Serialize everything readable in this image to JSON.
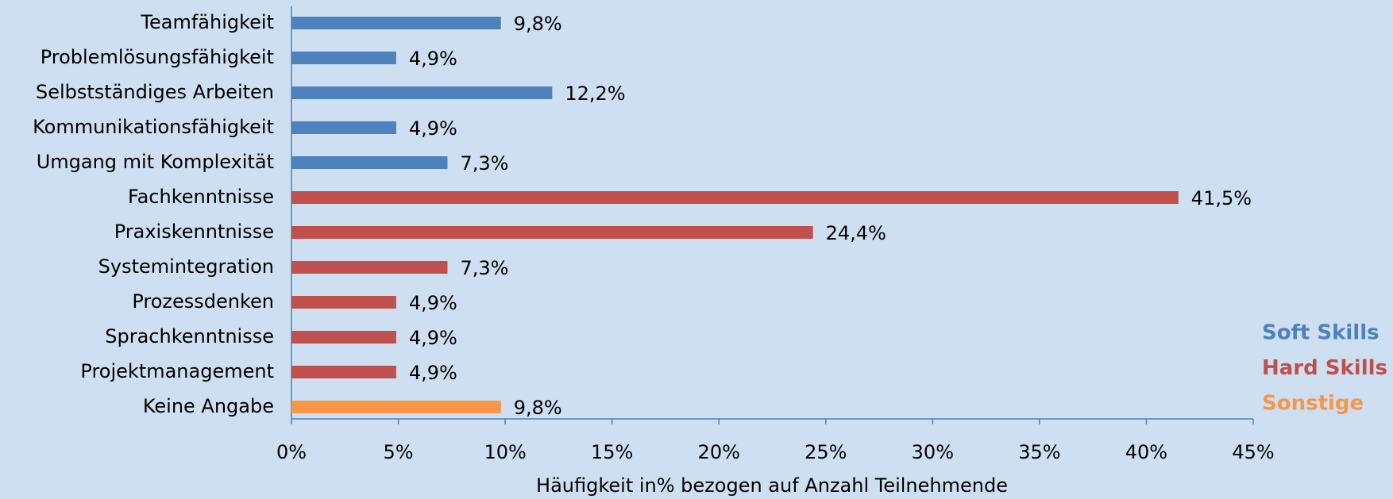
{
  "chart_data": {
    "type": "bar",
    "orientation": "horizontal",
    "x_label": "Häufigkeit in% bezogen auf Anzahl Teilnehmende",
    "categories": [
      "Teamfähigkeit",
      "Problemlösungsfähigkeit",
      "Selbstständiges Arbeiten",
      "Kommunikationsfähigkeit",
      "Umgang mit Komplexität",
      "Fachkenntnisse",
      "Praxiskenntnisse",
      "Systemintegration",
      "Prozessdenken",
      "Sprachkenntnisse",
      "Projektmanagement",
      "Keine Angabe"
    ],
    "series": [
      {
        "name": "Soft Skills",
        "color": "#4f81bd",
        "values": [
          9.8,
          4.9,
          12.2,
          4.9,
          7.3,
          null,
          null,
          null,
          null,
          null,
          null,
          null
        ],
        "value_labels": [
          "9,8%",
          "4,9%",
          "12,2%",
          "4,9%",
          "7,3%",
          null,
          null,
          null,
          null,
          null,
          null,
          null
        ]
      },
      {
        "name": "Hard Skills",
        "color": "#c0504d",
        "values": [
          null,
          null,
          null,
          null,
          null,
          41.5,
          24.4,
          7.3,
          4.9,
          4.9,
          4.9,
          null
        ],
        "value_labels": [
          null,
          null,
          null,
          null,
          null,
          "41,5%",
          "24,4%",
          "7,3%",
          "4,9%",
          "4,9%",
          "4,9%",
          null
        ]
      },
      {
        "name": "Sonstige",
        "color": "#f79646",
        "values": [
          null,
          null,
          null,
          null,
          null,
          null,
          null,
          null,
          null,
          null,
          null,
          9.8
        ],
        "value_labels": [
          null,
          null,
          null,
          null,
          null,
          null,
          null,
          null,
          null,
          null,
          null,
          "9,8%"
        ]
      }
    ],
    "xlim": [
      0,
      45
    ],
    "xticks": [
      {
        "value": 0,
        "label": "0%"
      },
      {
        "value": 5,
        "label": "5%"
      },
      {
        "value": 10,
        "label": "10%"
      },
      {
        "value": 15,
        "label": "15%"
      },
      {
        "value": 20,
        "label": "20%"
      },
      {
        "value": 25,
        "label": "25%"
      },
      {
        "value": 30,
        "label": "30%"
      },
      {
        "value": 35,
        "label": "35%"
      },
      {
        "value": 40,
        "label": "40%"
      },
      {
        "value": 45,
        "label": "45%"
      }
    ],
    "grid": false,
    "legend": "lower right"
  }
}
